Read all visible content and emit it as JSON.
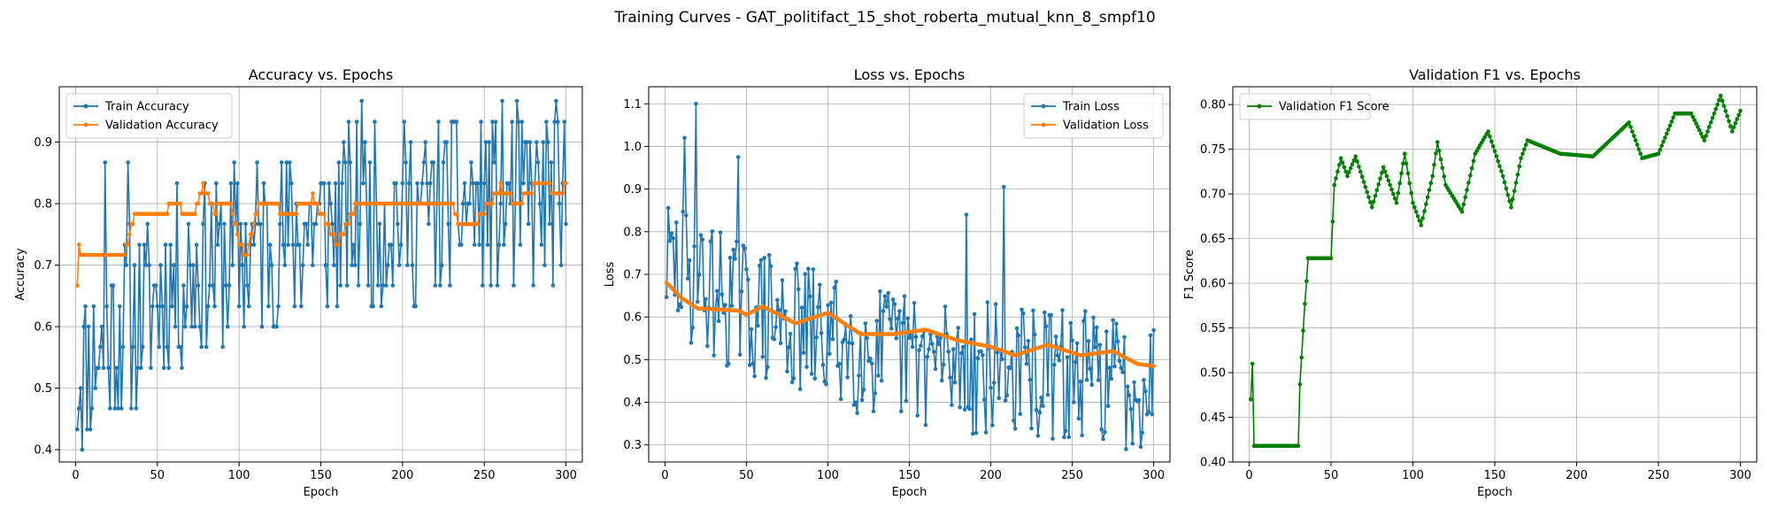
{
  "figure": {
    "title": "Training Curves - GAT_politifact_15_shot_roberta_mutual_knn_8_smpf10"
  },
  "colors": {
    "train": "#1f77b4",
    "val": "#ff7f0e",
    "f1": "#008000",
    "grid": "#b0b0b0"
  },
  "chart_data": [
    {
      "type": "line",
      "title": "Accuracy vs. Epochs",
      "xlabel": "Epoch",
      "ylabel": "Accuracy",
      "xlim": [
        -10,
        310
      ],
      "ylim": [
        0.38,
        0.99
      ],
      "xticks": [
        0,
        50,
        100,
        150,
        200,
        250,
        300
      ],
      "yticks": [
        0.4,
        0.5,
        0.6,
        0.7,
        0.8,
        0.9
      ],
      "grid": true,
      "legend_position": "upper-left",
      "series": [
        {
          "name": "Train Accuracy",
          "color": "#1f77b4",
          "gen": "trainAcc"
        },
        {
          "name": "Validation Accuracy",
          "color": "#ff7f0e",
          "gen": "valAcc"
        }
      ]
    },
    {
      "type": "line",
      "title": "Loss vs. Epochs",
      "xlabel": "Epoch",
      "ylabel": "Loss",
      "xlim": [
        -10,
        310
      ],
      "ylim": [
        0.26,
        1.14
      ],
      "xticks": [
        0,
        50,
        100,
        150,
        200,
        250,
        300
      ],
      "yticks": [
        0.3,
        0.4,
        0.5,
        0.6,
        0.7,
        0.8,
        0.9,
        1.0,
        1.1
      ],
      "grid": true,
      "legend_position": "upper-right",
      "series": [
        {
          "name": "Train Loss",
          "color": "#1f77b4",
          "gen": "trainLoss"
        },
        {
          "name": "Validation Loss",
          "color": "#ff7f0e",
          "gen": "valLoss"
        }
      ]
    },
    {
      "type": "line",
      "title": "Validation F1 vs. Epochs",
      "xlabel": "Epoch",
      "ylabel": "F1 Score",
      "xlim": [
        -10,
        310
      ],
      "ylim": [
        0.4,
        0.82
      ],
      "xticks": [
        0,
        50,
        100,
        150,
        200,
        250,
        300
      ],
      "yticks": [
        0.4,
        0.45,
        0.5,
        0.55,
        0.6,
        0.65,
        0.7,
        0.75,
        0.8
      ],
      "grid": true,
      "legend_position": "upper-left",
      "series": [
        {
          "name": "Validation F1 Score",
          "color": "#008000",
          "gen": "valF1"
        }
      ]
    }
  ]
}
